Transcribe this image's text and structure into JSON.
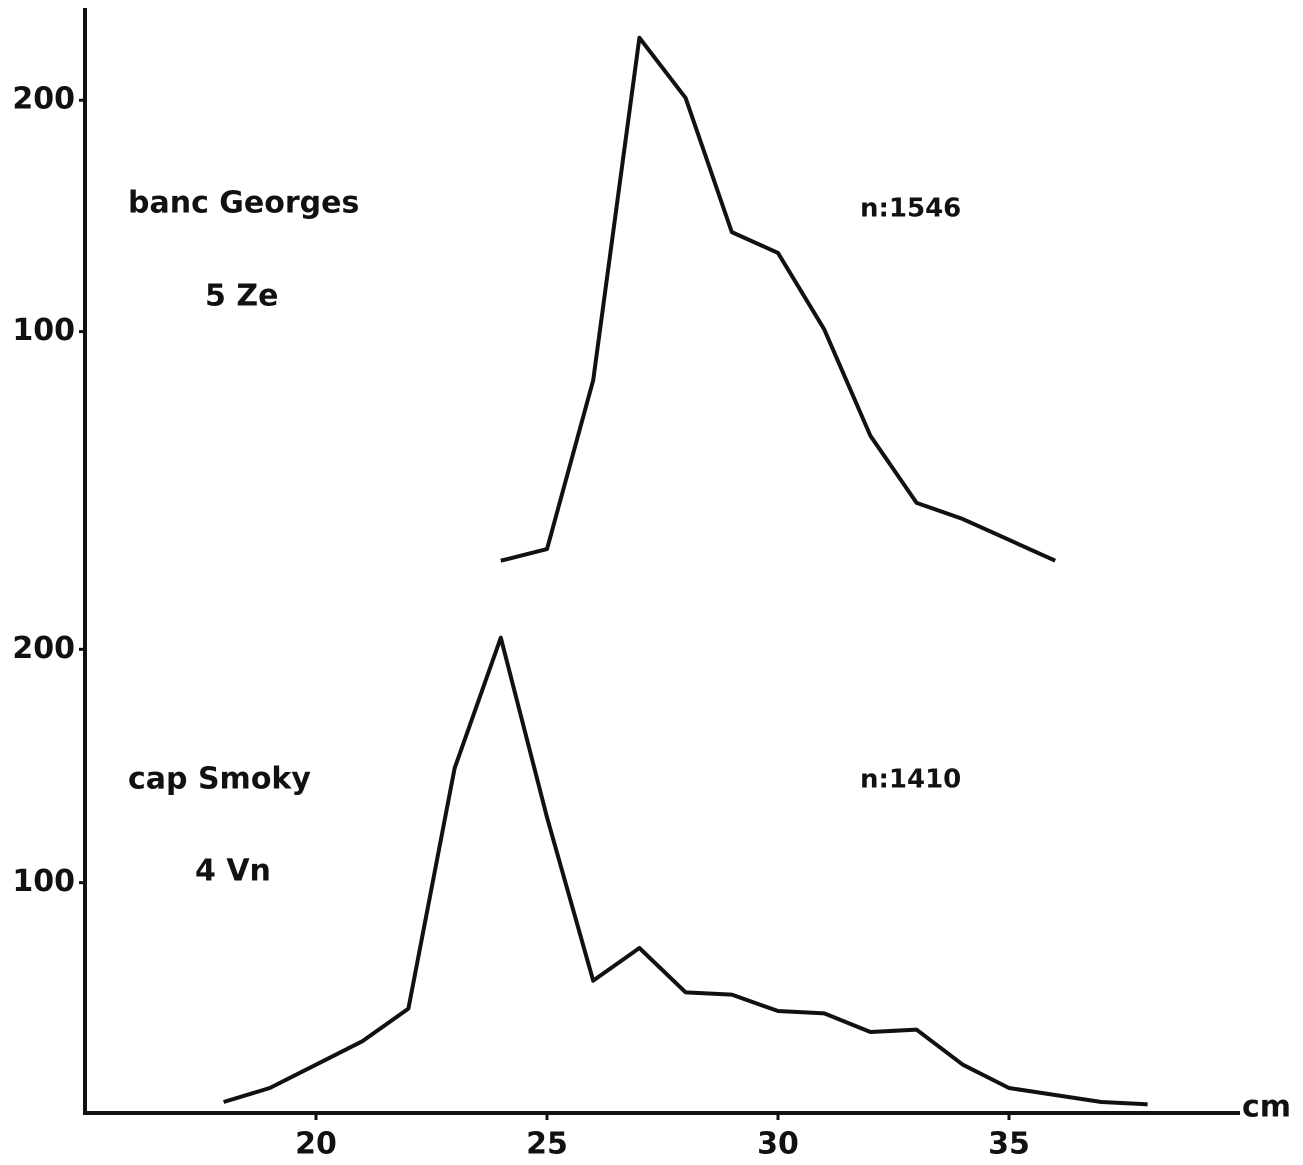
{
  "chart_data": [
    {
      "type": "line",
      "annotations": [
        "banc Georges",
        "5 Ze",
        "n:1546"
      ],
      "x": [
        24,
        25,
        26,
        27,
        28,
        29,
        30,
        31,
        32,
        33,
        34,
        35,
        36
      ],
      "series": [
        {
          "color": "#111111",
          "values": [
            1,
            6,
            79,
            227,
            201,
            143,
            134,
            101,
            55,
            26,
            19,
            10,
            1
          ]
        }
      ],
      "xlim": [
        15,
        40
      ],
      "ylim": [
        0,
        239
      ],
      "yticks": [
        100,
        200
      ]
    },
    {
      "type": "line",
      "annotations": [
        "cap Smoky",
        "4 Vn",
        "n:1410"
      ],
      "x_label": "cm",
      "x": [
        18,
        19,
        20,
        21,
        22,
        23,
        24,
        25,
        26,
        27,
        28,
        29,
        30,
        31,
        32,
        33,
        34,
        35,
        36,
        37,
        38
      ],
      "series": [
        {
          "color": "#111111",
          "values": [
            6,
            12,
            22,
            32,
            46,
            149,
            205,
            128,
            58,
            72,
            53,
            52,
            45,
            44,
            36,
            37,
            22,
            12,
            9,
            6,
            5
          ]
        }
      ],
      "xlim": [
        15,
        40
      ],
      "xticks": [
        20,
        25,
        30,
        35
      ],
      "ylim": [
        0,
        237
      ],
      "yticks": [
        100,
        200
      ]
    }
  ]
}
